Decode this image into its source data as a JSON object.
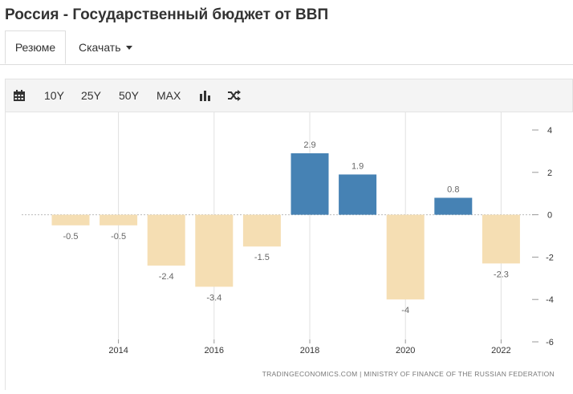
{
  "page": {
    "title": "Россия - Государственный бюджет от ВВП"
  },
  "tabs": {
    "summary_label": "Резюме",
    "download_label": "Скачать"
  },
  "toolbar": {
    "calendar_icon": "calendar-icon",
    "range_10y": "10Y",
    "range_25y": "25Y",
    "range_50y": "50Y",
    "range_max": "MAX",
    "bar_chart_icon": "bar-chart-icon",
    "shuffle_icon": "shuffle-icon"
  },
  "colors": {
    "positive": "#4682b4",
    "negative": "#f5deb3",
    "label": "#666666",
    "grid": "#e0e0e0",
    "zero_line": "#bbbbbb"
  },
  "chart_data": {
    "type": "bar",
    "categories": [
      "2013",
      "2014",
      "2015",
      "2016",
      "2017",
      "2018",
      "2019",
      "2020",
      "2021",
      "2022"
    ],
    "values": [
      -0.5,
      -0.5,
      -2.4,
      -3.4,
      -1.5,
      2.9,
      1.9,
      -4,
      0.8,
      -2.3
    ],
    "value_labels": [
      "-0.5",
      "-0.5",
      "-2.4",
      "-3.4",
      "-1.5",
      "2.9",
      "1.9",
      "-4",
      "0.8",
      "-2.3"
    ],
    "x_tick_labels": [
      "2014",
      "2016",
      "2018",
      "2020",
      "2022"
    ],
    "y_ticks": [
      "4",
      "2",
      "0",
      "-2",
      "-4",
      "-6"
    ],
    "ylim": [
      -6,
      4
    ],
    "y_axis_position": "right",
    "grid": "vertical",
    "title": "",
    "xlabel": "",
    "ylabel": "",
    "source": "TRADINGECONOMICS.COM | MINISTRY OF FINANCE OF THE RUSSIAN FEDERATION"
  }
}
